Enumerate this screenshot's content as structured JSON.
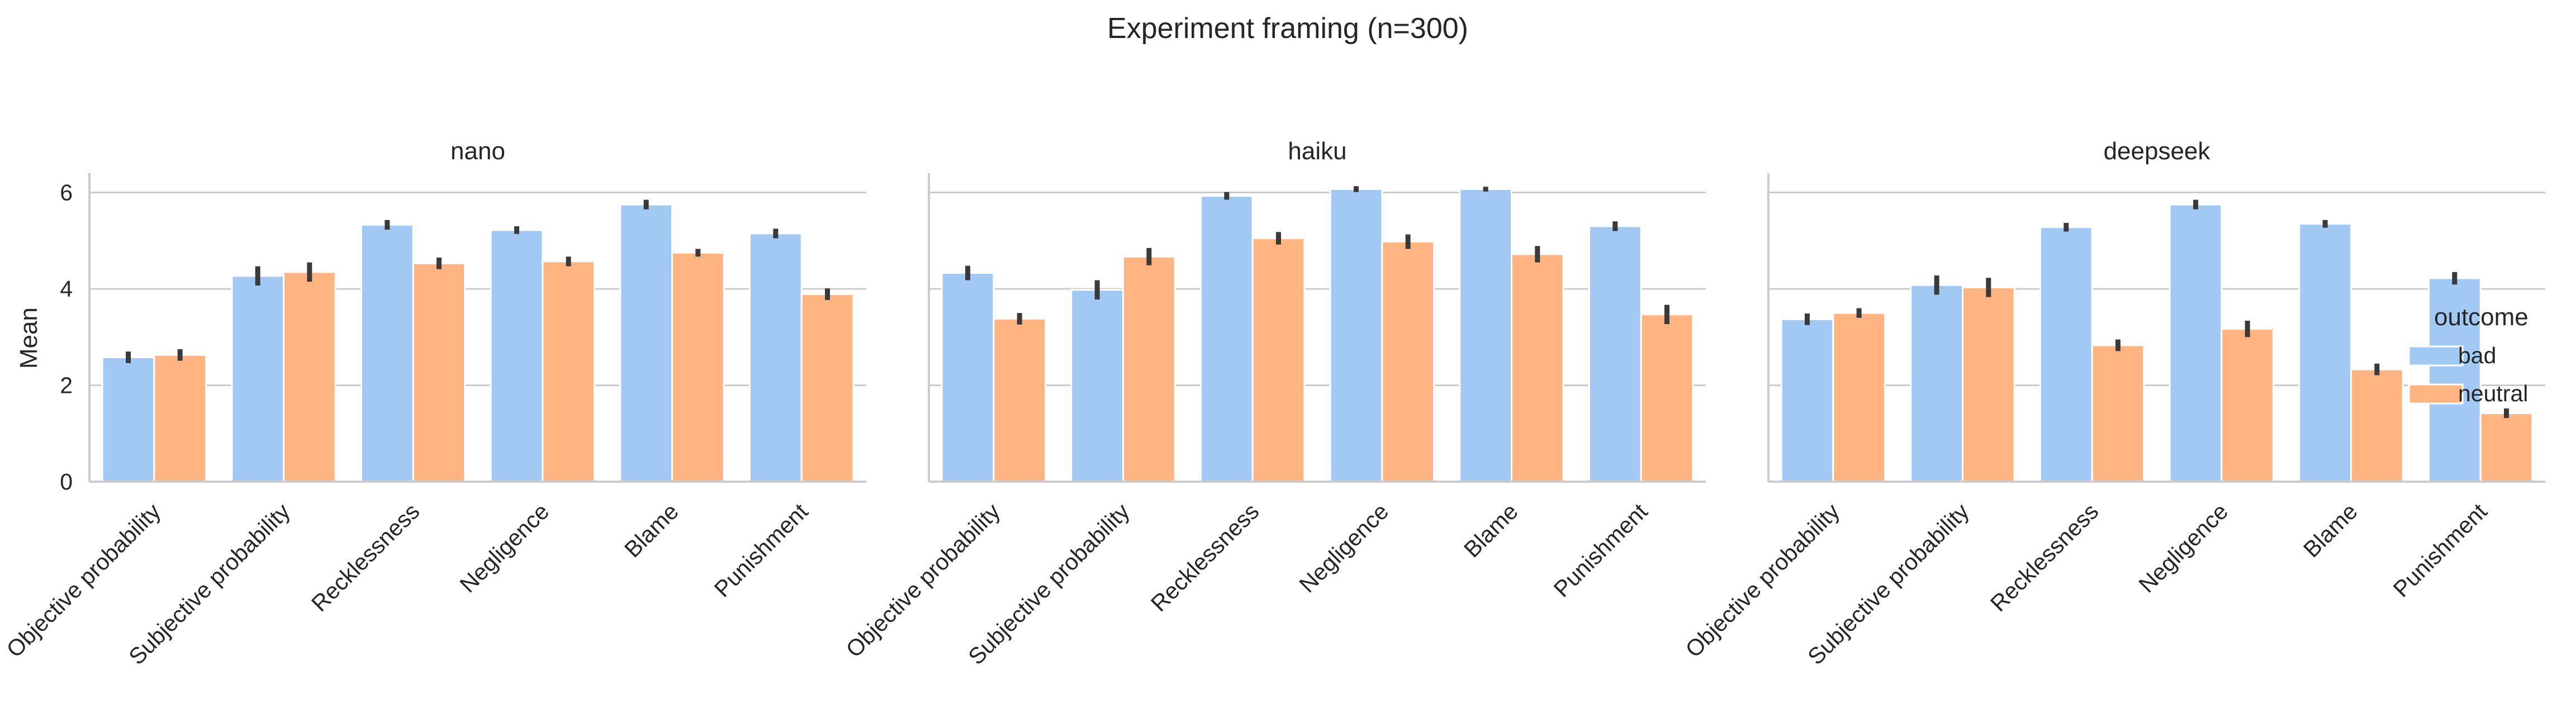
{
  "chart_data": {
    "type": "bar",
    "title": "Experiment framing (n=300)",
    "ylabel": "Mean",
    "ylim": [
      0,
      6.4
    ],
    "yticks": [
      0,
      2,
      4,
      6
    ],
    "grid": "horizontal",
    "categories": [
      "Objective probability",
      "Subjective probability",
      "Recklessness",
      "Negligence",
      "Blame",
      "Punishment"
    ],
    "legend": {
      "title": "outcome",
      "placement": "right",
      "entries": [
        {
          "name": "bad",
          "color": "#a1c9f4"
        },
        {
          "name": "neutral",
          "color": "#ffb482"
        }
      ]
    },
    "panels": [
      {
        "title": "nano",
        "series": [
          {
            "name": "bad",
            "values": [
              2.58,
              4.27,
              5.33,
              5.22,
              5.75,
              5.15
            ],
            "error": [
              0.12,
              0.2,
              0.1,
              0.08,
              0.1,
              0.1
            ]
          },
          {
            "name": "neutral",
            "values": [
              2.63,
              4.35,
              4.53,
              4.57,
              4.75,
              3.89
            ],
            "error": [
              0.12,
              0.2,
              0.12,
              0.1,
              0.08,
              0.12
            ]
          }
        ]
      },
      {
        "title": "haiku",
        "series": [
          {
            "name": "bad",
            "values": [
              4.33,
              3.98,
              5.93,
              6.07,
              6.07,
              5.3
            ],
            "error": [
              0.15,
              0.2,
              0.08,
              0.06,
              0.05,
              0.1
            ]
          },
          {
            "name": "neutral",
            "values": [
              3.38,
              4.67,
              5.05,
              4.98,
              4.72,
              3.47
            ],
            "error": [
              0.12,
              0.18,
              0.13,
              0.15,
              0.17,
              0.2
            ]
          }
        ]
      },
      {
        "title": "deepseek",
        "series": [
          {
            "name": "bad",
            "values": [
              3.37,
              4.08,
              5.28,
              5.75,
              5.35,
              4.22
            ],
            "error": [
              0.12,
              0.2,
              0.09,
              0.1,
              0.08,
              0.13
            ]
          },
          {
            "name": "neutral",
            "values": [
              3.5,
              4.03,
              2.83,
              3.17,
              2.33,
              1.42
            ],
            "error": [
              0.1,
              0.2,
              0.12,
              0.17,
              0.12,
              0.1
            ]
          }
        ]
      }
    ]
  }
}
